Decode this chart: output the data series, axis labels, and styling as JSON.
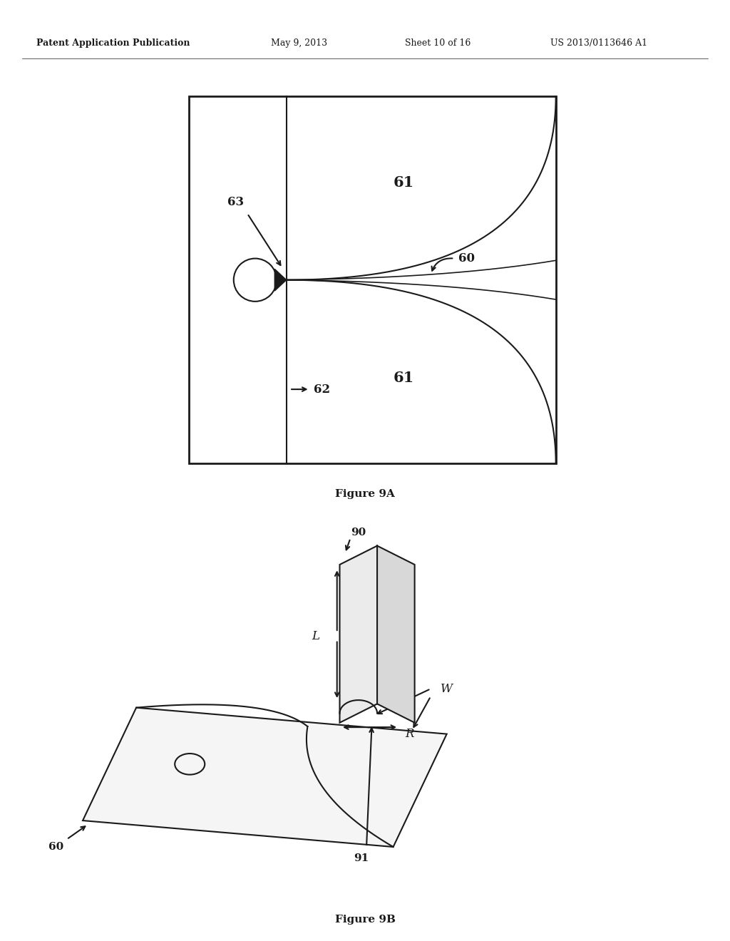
{
  "bg_color": "#ffffff",
  "header_text": "Patent Application Publication",
  "header_date": "May 9, 2013",
  "header_sheet": "Sheet 10 of 16",
  "header_patent": "US 2013/0113646 A1",
  "fig9a_caption": "Figure 9A",
  "fig9b_caption": "Figure 9B",
  "label_61_top": "61",
  "label_61_bot": "61",
  "label_60a": "60",
  "label_62": "62",
  "label_63": "63",
  "label_90": "90",
  "label_91": "91",
  "label_60b": "60",
  "label_L": "L",
  "label_W": "W",
  "label_R": "R",
  "line_color": "#1a1a1a",
  "text_color": "#1a1a1a"
}
